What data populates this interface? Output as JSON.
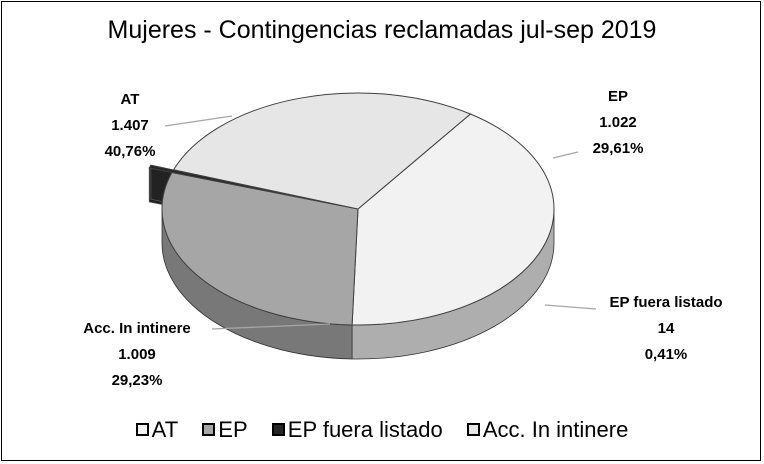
{
  "chart_data": {
    "type": "pie",
    "title": "Mujeres - Contingencias reclamadas jul-sep 2019",
    "categories": [
      "AT",
      "EP",
      "EP fuera listado",
      "Acc. In intinere"
    ],
    "values": [
      1407,
      1022,
      14,
      1009
    ],
    "value_labels": [
      "1.407",
      "1.022",
      "14",
      "1.009"
    ],
    "percent_labels": [
      "40,76%",
      "29,61%",
      "0,41%",
      "29,23%"
    ],
    "percents": [
      40.76,
      29.61,
      0.41,
      29.23
    ],
    "colors": [
      "#f2f2f2",
      "#a6a6a6",
      "#262626",
      "#e6e6e6"
    ],
    "exploded": [
      "EP fuera listado"
    ],
    "style": "3d",
    "legend_position": "bottom"
  }
}
